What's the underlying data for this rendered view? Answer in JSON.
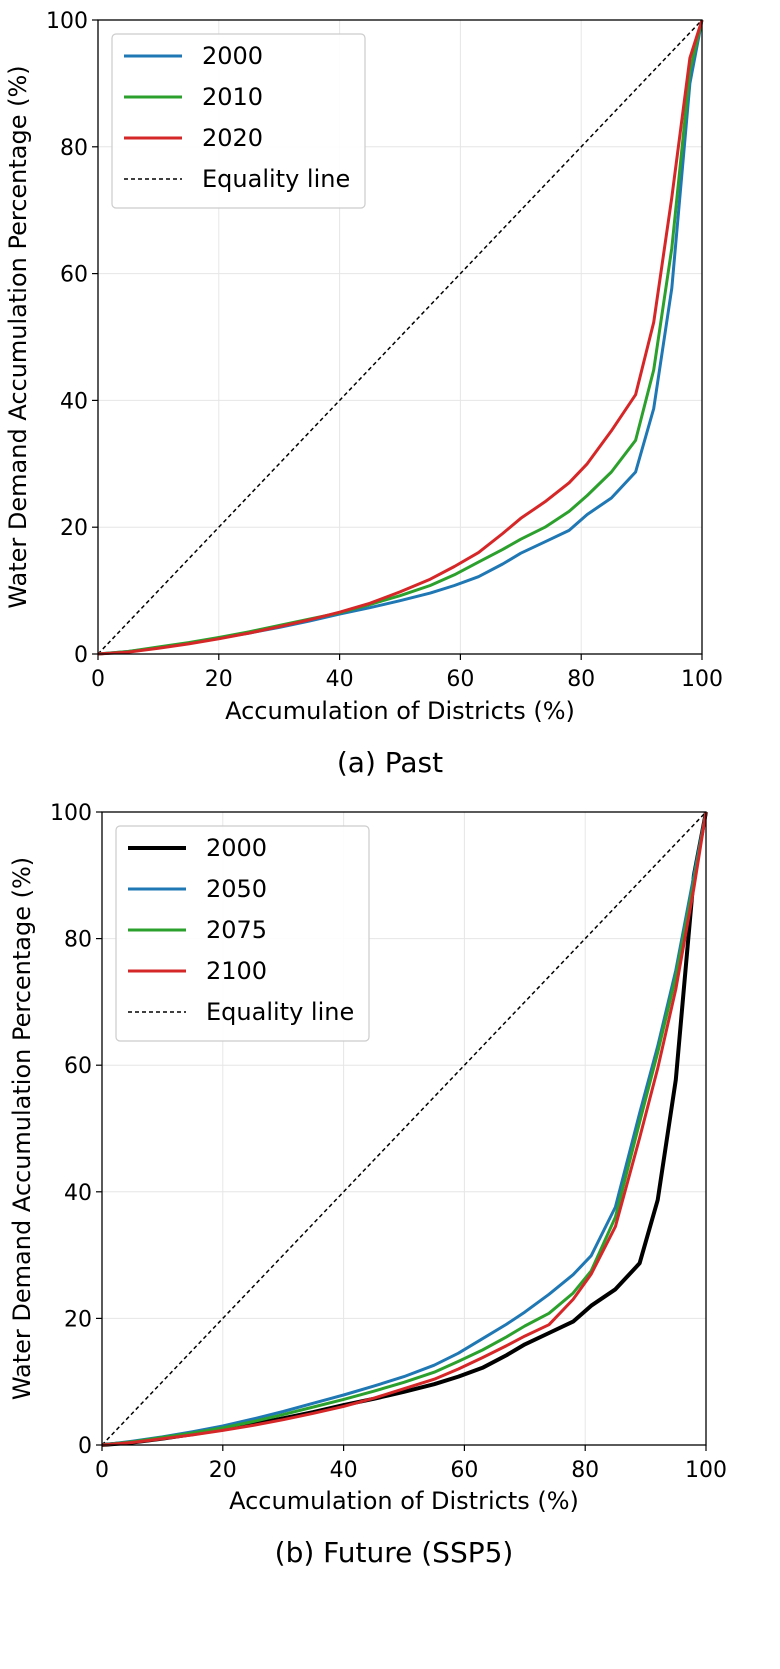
{
  "chart_data": [
    {
      "type": "line",
      "caption": "(a) Past",
      "xlabel": "Accumulation of Districts (%)",
      "ylabel": "Water Demand Accumulation Percentage (%)",
      "xlim": [
        0,
        100
      ],
      "ylim": [
        0,
        100
      ],
      "xticks": [
        "0",
        "20",
        "40",
        "60",
        "80",
        "100"
      ],
      "yticks": [
        "0",
        "20",
        "40",
        "60",
        "80",
        "100"
      ],
      "grid": true,
      "legend_position": "top-left",
      "series": [
        {
          "name": "2000",
          "color": "#1f77b4",
          "x": [
            0,
            5,
            10,
            15,
            20,
            25,
            30,
            35,
            40,
            45,
            50,
            55,
            59,
            63,
            67,
            70,
            74,
            78,
            81,
            85,
            89,
            92,
            95,
            98,
            100
          ],
          "y": [
            0,
            0.4,
            1.0,
            1.7,
            2.5,
            3.3,
            4.2,
            5.2,
            6.3,
            7.3,
            8.4,
            9.6,
            10.8,
            12.2,
            14.2,
            15.9,
            17.7,
            19.5,
            22.0,
            24.6,
            28.7,
            38.7,
            57.7,
            90,
            100
          ]
        },
        {
          "name": "2010",
          "color": "#2ca02c",
          "x": [
            0,
            5,
            10,
            15,
            20,
            25,
            30,
            35,
            40,
            45,
            50,
            55,
            59,
            63,
            67,
            70,
            74,
            78,
            81,
            85,
            89,
            92,
            95,
            98,
            100
          ],
          "y": [
            0,
            0.4,
            1.1,
            1.8,
            2.6,
            3.5,
            4.5,
            5.5,
            6.5,
            7.8,
            9.2,
            10.8,
            12.5,
            14.5,
            16.5,
            18.1,
            20.0,
            22.5,
            25.0,
            28.7,
            33.7,
            44.8,
            64.0,
            92,
            100
          ]
        },
        {
          "name": "2020",
          "color": "#d62728",
          "x": [
            0,
            5,
            10,
            15,
            20,
            25,
            30,
            35,
            40,
            45,
            50,
            55,
            59,
            63,
            67,
            70,
            74,
            78,
            81,
            85,
            89,
            92,
            95,
            98,
            100
          ],
          "y": [
            0,
            0.3,
            0.9,
            1.6,
            2.4,
            3.3,
            4.3,
            5.4,
            6.6,
            8.0,
            9.8,
            11.8,
            13.8,
            16.0,
            19.0,
            21.4,
            24.0,
            27.0,
            30.0,
            35.2,
            40.9,
            52.3,
            72.0,
            94,
            100
          ]
        }
      ],
      "equality_line": {
        "name": "Equality line",
        "color": "#000000"
      }
    },
    {
      "type": "line",
      "caption": "(b) Future (SSP5)",
      "xlabel": "Accumulation of Districts (%)",
      "ylabel": "Water Demand Accumulation Percentage (%)",
      "xlim": [
        0,
        100
      ],
      "ylim": [
        0,
        100
      ],
      "xticks": [
        "0",
        "20",
        "40",
        "60",
        "80",
        "100"
      ],
      "yticks": [
        "0",
        "20",
        "40",
        "60",
        "80",
        "100"
      ],
      "grid": true,
      "legend_position": "top-left",
      "series": [
        {
          "name": "2000",
          "color": "#000000",
          "x": [
            0,
            5,
            10,
            15,
            20,
            25,
            30,
            35,
            40,
            45,
            50,
            55,
            59,
            63,
            67,
            70,
            74,
            78,
            81,
            85,
            89,
            92,
            95,
            98,
            100
          ],
          "y": [
            0,
            0.4,
            1.0,
            1.7,
            2.5,
            3.3,
            4.2,
            5.2,
            6.3,
            7.3,
            8.4,
            9.6,
            10.8,
            12.2,
            14.2,
            15.9,
            17.7,
            19.5,
            22.0,
            24.6,
            28.7,
            38.7,
            57.7,
            90,
            100
          ]
        },
        {
          "name": "2050",
          "color": "#1f77b4",
          "x": [
            0,
            5,
            10,
            15,
            20,
            25,
            30,
            35,
            40,
            45,
            50,
            55,
            59,
            63,
            67,
            70,
            74,
            78,
            81,
            85,
            89,
            92,
            95,
            98,
            100
          ],
          "y": [
            0,
            0.6,
            1.3,
            2.1,
            3.0,
            4.1,
            5.3,
            6.6,
            7.9,
            9.3,
            10.8,
            12.6,
            14.5,
            16.8,
            19.1,
            21.0,
            23.8,
            26.9,
            29.9,
            37.6,
            52.4,
            63.0,
            75.0,
            90,
            100
          ]
        },
        {
          "name": "2075",
          "color": "#2ca02c",
          "x": [
            0,
            5,
            10,
            15,
            20,
            25,
            30,
            35,
            40,
            45,
            50,
            55,
            59,
            63,
            67,
            70,
            74,
            78,
            81,
            85,
            89,
            92,
            95,
            98,
            100
          ],
          "y": [
            0,
            0.5,
            1.2,
            1.9,
            2.7,
            3.7,
            4.8,
            6.0,
            7.2,
            8.5,
            9.9,
            11.5,
            13.2,
            15.0,
            17.1,
            18.8,
            20.8,
            24.0,
            27.5,
            36.0,
            51.0,
            62.0,
            74.0,
            89,
            100
          ]
        },
        {
          "name": "2100",
          "color": "#d62728",
          "x": [
            0,
            5,
            10,
            15,
            20,
            25,
            30,
            35,
            40,
            45,
            50,
            55,
            59,
            63,
            67,
            70,
            74,
            78,
            81,
            85,
            89,
            92,
            95,
            98,
            100
          ],
          "y": [
            0,
            0.4,
            1.0,
            1.6,
            2.3,
            3.1,
            4.0,
            5.0,
            6.1,
            7.4,
            8.9,
            10.4,
            12.0,
            13.8,
            15.7,
            17.2,
            19.0,
            23.0,
            27.0,
            34.5,
            48.5,
            59.5,
            72.0,
            88,
            100
          ]
        }
      ],
      "equality_line": {
        "name": "Equality line",
        "color": "#000000"
      }
    }
  ]
}
